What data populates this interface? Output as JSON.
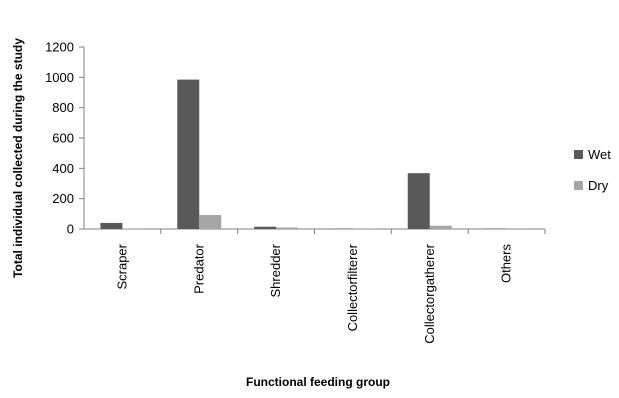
{
  "chart_data": {
    "type": "bar",
    "title": "",
    "xlabel": "Functional feeding group",
    "ylabel": "Total individual collected during the study",
    "categories": [
      "Scraper",
      "Predator",
      "Shredder",
      "Collectorfilterer",
      "Collectorgatherer",
      "Others"
    ],
    "series": [
      {
        "name": "Wet",
        "color": "#595959",
        "values": [
          40,
          985,
          15,
          2,
          368,
          2
        ]
      },
      {
        "name": "Dry",
        "color": "#a6a6a6",
        "values": [
          2,
          92,
          10,
          2,
          22,
          1
        ]
      }
    ],
    "ylim": [
      0,
      1200
    ],
    "yticks": [
      "0",
      "200",
      "400",
      "600",
      "800",
      "1000",
      "1200"
    ],
    "grid": false,
    "legend": "right"
  }
}
